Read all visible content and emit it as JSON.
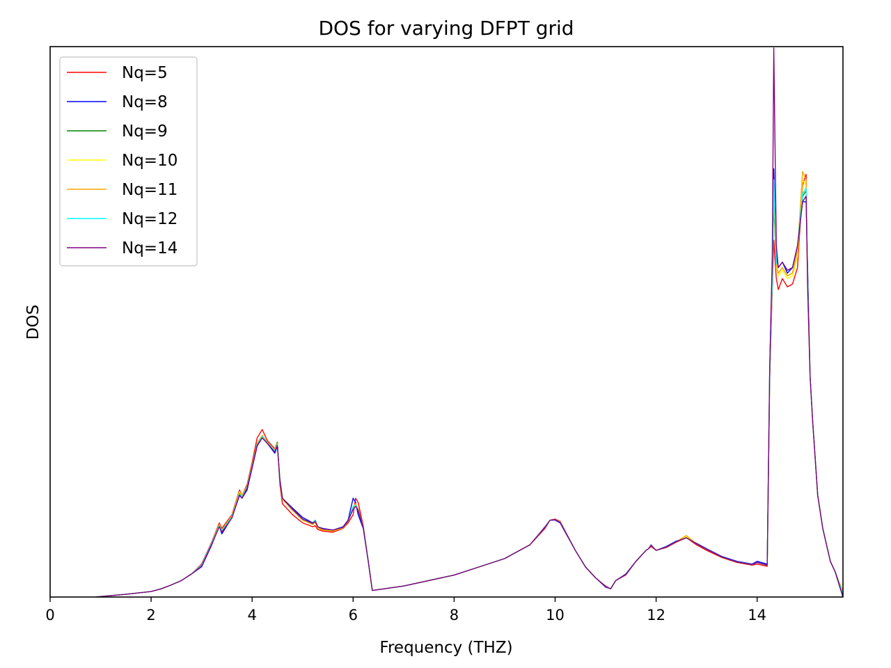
{
  "chart_data": {
    "type": "line",
    "title": "DOS for varying DFPT grid",
    "xlabel": "Frequency (THZ)",
    "ylabel": "DOS",
    "xlim": [
      0,
      15.7
    ],
    "ylim": [
      0,
      1.0
    ],
    "x_ticks": [
      "0",
      "2",
      "4",
      "6",
      "8",
      "10",
      "12",
      "14"
    ],
    "x_tick_values": [
      0,
      2,
      4,
      6,
      8,
      10,
      12,
      14
    ],
    "y_ticks_shown": false,
    "grid": false,
    "legend_position": "top-left",
    "x": [
      0.9,
      1.5,
      2.0,
      2.2,
      2.4,
      2.6,
      2.8,
      3.0,
      3.2,
      3.35,
      3.4,
      3.6,
      3.75,
      3.8,
      3.9,
      4.0,
      4.1,
      4.2,
      4.3,
      4.45,
      4.5,
      4.55,
      4.6,
      4.8,
      5.0,
      5.2,
      5.25,
      5.3,
      5.4,
      5.6,
      5.8,
      5.9,
      6.0,
      6.05,
      6.1,
      6.2,
      6.3,
      6.38,
      7.0,
      8.0,
      8.5,
      9.0,
      9.5,
      9.8,
      9.9,
      10.0,
      10.1,
      10.2,
      10.4,
      10.6,
      10.8,
      11.0,
      11.1,
      11.2,
      11.4,
      11.6,
      11.8,
      11.85,
      11.9,
      12.0,
      12.2,
      12.4,
      12.6,
      12.8,
      13.0,
      13.3,
      13.6,
      13.9,
      14.0,
      14.2,
      14.25,
      14.3,
      14.33,
      14.38,
      14.42,
      14.5,
      14.6,
      14.7,
      14.8,
      14.9,
      14.97,
      15.0,
      15.05,
      15.1,
      15.2,
      15.3,
      15.45,
      15.55,
      15.7
    ],
    "series": [
      {
        "name": "Nq=5",
        "color": "#ff0000",
        "values": [
          0.0,
          0.005,
          0.01,
          0.015,
          0.022,
          0.03,
          0.042,
          0.06,
          0.1,
          0.135,
          0.125,
          0.15,
          0.195,
          0.185,
          0.205,
          0.245,
          0.29,
          0.305,
          0.285,
          0.27,
          0.282,
          0.205,
          0.17,
          0.15,
          0.135,
          0.128,
          0.13,
          0.123,
          0.12,
          0.118,
          0.125,
          0.135,
          0.15,
          0.18,
          0.172,
          0.13,
          0.065,
          0.012,
          0.02,
          0.04,
          0.055,
          0.07,
          0.095,
          0.125,
          0.14,
          0.142,
          0.138,
          0.12,
          0.085,
          0.055,
          0.035,
          0.02,
          0.015,
          0.03,
          0.04,
          0.065,
          0.085,
          0.088,
          0.092,
          0.085,
          0.09,
          0.1,
          0.108,
          0.095,
          0.085,
          0.072,
          0.063,
          0.058,
          0.06,
          0.056,
          0.4,
          0.56,
          0.65,
          0.58,
          0.56,
          0.58,
          0.565,
          0.57,
          0.6,
          0.75,
          0.77,
          0.56,
          0.4,
          0.32,
          0.185,
          0.125,
          0.065,
          0.045,
          0.0
        ]
      },
      {
        "name": "Nq=8",
        "color": "#0000ff",
        "values": [
          0.0,
          0.005,
          0.01,
          0.015,
          0.022,
          0.03,
          0.042,
          0.055,
          0.095,
          0.13,
          0.115,
          0.145,
          0.185,
          0.18,
          0.195,
          0.235,
          0.275,
          0.29,
          0.28,
          0.262,
          0.275,
          0.215,
          0.18,
          0.162,
          0.145,
          0.135,
          0.14,
          0.128,
          0.125,
          0.122,
          0.128,
          0.14,
          0.18,
          0.172,
          0.15,
          0.125,
          0.065,
          0.012,
          0.02,
          0.04,
          0.055,
          0.07,
          0.095,
          0.128,
          0.14,
          0.14,
          0.135,
          0.118,
          0.085,
          0.055,
          0.035,
          0.018,
          0.015,
          0.03,
          0.042,
          0.065,
          0.085,
          0.088,
          0.095,
          0.085,
          0.092,
          0.102,
          0.108,
          0.098,
          0.088,
          0.074,
          0.065,
          0.06,
          0.065,
          0.06,
          0.42,
          0.6,
          0.78,
          0.62,
          0.6,
          0.61,
          0.59,
          0.6,
          0.64,
          0.72,
          0.72,
          0.6,
          0.4,
          0.32,
          0.185,
          0.125,
          0.065,
          0.045,
          0.0
        ]
      },
      {
        "name": "Nq=9",
        "color": "#008000",
        "values": [
          0.0,
          0.005,
          0.01,
          0.015,
          0.022,
          0.03,
          0.042,
          0.058,
          0.098,
          0.132,
          0.122,
          0.148,
          0.192,
          0.185,
          0.202,
          0.24,
          0.28,
          0.294,
          0.282,
          0.268,
          0.282,
          0.21,
          0.178,
          0.158,
          0.14,
          0.132,
          0.136,
          0.126,
          0.122,
          0.12,
          0.126,
          0.138,
          0.162,
          0.17,
          0.16,
          0.128,
          0.065,
          0.012,
          0.02,
          0.04,
          0.055,
          0.07,
          0.095,
          0.127,
          0.14,
          0.141,
          0.137,
          0.119,
          0.085,
          0.055,
          0.035,
          0.019,
          0.015,
          0.03,
          0.041,
          0.065,
          0.085,
          0.088,
          0.094,
          0.085,
          0.091,
          0.101,
          0.108,
          0.097,
          0.087,
          0.073,
          0.064,
          0.059,
          0.063,
          0.058,
          0.41,
          0.58,
          0.72,
          0.6,
          0.59,
          0.6,
          0.585,
          0.59,
          0.63,
          0.73,
          0.74,
          0.58,
          0.4,
          0.32,
          0.185,
          0.125,
          0.065,
          0.045,
          0.0
        ]
      },
      {
        "name": "Nq=10",
        "color": "#ffff00",
        "values": [
          0.0,
          0.005,
          0.01,
          0.015,
          0.022,
          0.03,
          0.042,
          0.058,
          0.098,
          0.132,
          0.122,
          0.148,
          0.192,
          0.185,
          0.202,
          0.24,
          0.28,
          0.294,
          0.282,
          0.268,
          0.28,
          0.21,
          0.178,
          0.158,
          0.14,
          0.132,
          0.136,
          0.126,
          0.122,
          0.12,
          0.126,
          0.138,
          0.162,
          0.17,
          0.16,
          0.128,
          0.065,
          0.012,
          0.02,
          0.04,
          0.055,
          0.07,
          0.095,
          0.127,
          0.14,
          0.141,
          0.137,
          0.119,
          0.085,
          0.055,
          0.035,
          0.019,
          0.015,
          0.03,
          0.041,
          0.065,
          0.085,
          0.088,
          0.094,
          0.085,
          0.091,
          0.101,
          0.11,
          0.097,
          0.087,
          0.073,
          0.064,
          0.059,
          0.063,
          0.058,
          0.41,
          0.58,
          0.74,
          0.6,
          0.585,
          0.595,
          0.58,
          0.585,
          0.62,
          0.76,
          0.75,
          0.57,
          0.4,
          0.32,
          0.185,
          0.125,
          0.065,
          0.045,
          0.005
        ]
      },
      {
        "name": "Nq=11",
        "color": "#ffa500",
        "values": [
          0.0,
          0.005,
          0.01,
          0.015,
          0.022,
          0.03,
          0.042,
          0.058,
          0.098,
          0.132,
          0.122,
          0.148,
          0.19,
          0.185,
          0.202,
          0.24,
          0.28,
          0.294,
          0.282,
          0.268,
          0.28,
          0.21,
          0.178,
          0.158,
          0.14,
          0.132,
          0.136,
          0.126,
          0.122,
          0.12,
          0.126,
          0.138,
          0.162,
          0.17,
          0.16,
          0.128,
          0.065,
          0.012,
          0.02,
          0.04,
          0.055,
          0.07,
          0.095,
          0.127,
          0.14,
          0.141,
          0.137,
          0.119,
          0.085,
          0.055,
          0.035,
          0.019,
          0.015,
          0.03,
          0.041,
          0.065,
          0.085,
          0.088,
          0.094,
          0.085,
          0.091,
          0.101,
          0.112,
          0.097,
          0.087,
          0.073,
          0.064,
          0.059,
          0.063,
          0.058,
          0.41,
          0.58,
          0.75,
          0.605,
          0.59,
          0.6,
          0.585,
          0.59,
          0.63,
          0.775,
          0.76,
          0.575,
          0.4,
          0.32,
          0.185,
          0.125,
          0.065,
          0.045,
          0.01
        ]
      },
      {
        "name": "Nq=12",
        "color": "#00ffff",
        "values": [
          0.0,
          0.005,
          0.01,
          0.015,
          0.022,
          0.03,
          0.042,
          0.058,
          0.098,
          0.13,
          0.12,
          0.146,
          0.188,
          0.182,
          0.2,
          0.238,
          0.278,
          0.292,
          0.281,
          0.266,
          0.278,
          0.212,
          0.18,
          0.16,
          0.142,
          0.134,
          0.14,
          0.128,
          0.124,
          0.122,
          0.127,
          0.139,
          0.165,
          0.168,
          0.158,
          0.127,
          0.065,
          0.012,
          0.02,
          0.04,
          0.055,
          0.07,
          0.095,
          0.127,
          0.14,
          0.141,
          0.136,
          0.119,
          0.085,
          0.055,
          0.035,
          0.019,
          0.015,
          0.03,
          0.041,
          0.065,
          0.085,
          0.088,
          0.094,
          0.085,
          0.091,
          0.101,
          0.108,
          0.097,
          0.087,
          0.073,
          0.064,
          0.059,
          0.063,
          0.058,
          0.41,
          0.58,
          0.76,
          0.61,
          0.6,
          0.61,
          0.595,
          0.6,
          0.64,
          0.735,
          0.745,
          0.585,
          0.4,
          0.32,
          0.185,
          0.125,
          0.065,
          0.045,
          0.005
        ]
      },
      {
        "name": "Nq=14",
        "color": "#800080",
        "values": [
          0.0,
          0.005,
          0.01,
          0.015,
          0.022,
          0.03,
          0.042,
          0.056,
          0.096,
          0.128,
          0.118,
          0.144,
          0.186,
          0.18,
          0.198,
          0.236,
          0.276,
          0.29,
          0.28,
          0.264,
          0.276,
          0.212,
          0.18,
          0.16,
          0.142,
          0.134,
          0.138,
          0.128,
          0.124,
          0.122,
          0.127,
          0.139,
          0.16,
          0.165,
          0.158,
          0.127,
          0.065,
          0.012,
          0.02,
          0.04,
          0.055,
          0.07,
          0.095,
          0.127,
          0.14,
          0.141,
          0.136,
          0.119,
          0.085,
          0.055,
          0.035,
          0.019,
          0.015,
          0.03,
          0.041,
          0.065,
          0.085,
          0.088,
          0.094,
          0.085,
          0.091,
          0.101,
          0.108,
          0.097,
          0.087,
          0.073,
          0.064,
          0.059,
          0.063,
          0.058,
          0.42,
          0.62,
          1.0,
          0.64,
          0.6,
          0.61,
          0.595,
          0.6,
          0.64,
          0.72,
          0.73,
          0.57,
          0.4,
          0.32,
          0.185,
          0.125,
          0.065,
          0.045,
          0.0
        ]
      }
    ]
  }
}
